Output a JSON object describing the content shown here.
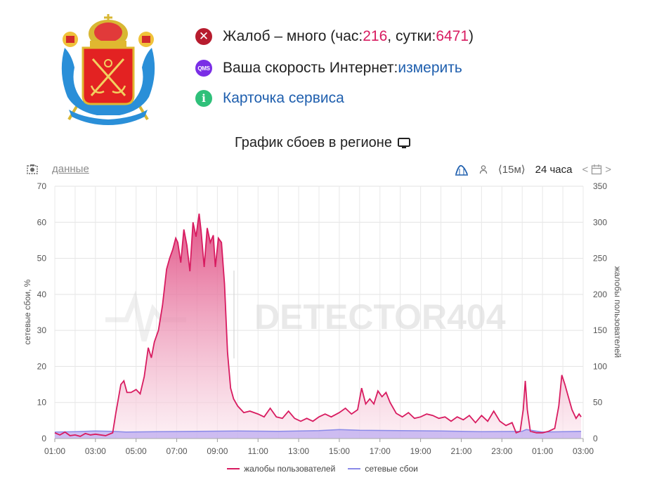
{
  "header": {
    "complaints": {
      "prefix": "Жалоб – много (час: ",
      "hour_value": "216",
      "middle": ", сутки: ",
      "day_value": "6471",
      "suffix": ")"
    },
    "speed": {
      "text": "Ваша скорость Интернет: ",
      "link": "измерить",
      "icon_text": "QMS"
    },
    "card": {
      "link": "Карточка сервиса",
      "icon_text": "i"
    }
  },
  "chart_title": "График сбоев в регионе",
  "toolbar": {
    "data_link": "данные",
    "interval": "⟨15м⟩",
    "period": "24 часа"
  },
  "watermark": "DETECTOR404",
  "colors": {
    "complaints": "#d81b60",
    "outages": "#8a8ae8",
    "fill_top": "#e0457e",
    "fill_bottom": "#fbe6ee"
  },
  "chart_data": {
    "type": "area",
    "ylabel_left": "сетевые сбои, %",
    "ylabel_right": "жалобы пользователей",
    "y_left_ticks": [
      "0",
      "10",
      "20",
      "30",
      "40",
      "50",
      "60",
      "70"
    ],
    "y_right_ticks": [
      "0",
      "50",
      "100",
      "150",
      "200",
      "250",
      "300",
      "350"
    ],
    "ylim_left": [
      0,
      70
    ],
    "ylim_right": [
      0,
      350
    ],
    "x_range_hours": [
      1,
      27
    ],
    "x_ticks": [
      "01:00",
      "03:00",
      "05:00",
      "07:00",
      "09:00",
      "11:00",
      "13:00",
      "15:00",
      "17:00",
      "19:00",
      "21:00",
      "23:00",
      "01:00",
      "03:00"
    ],
    "legend": [
      "жалобы пользователей",
      "сетевые сбои"
    ],
    "grid": true,
    "series": [
      {
        "name": "жалобы пользователей",
        "axis": "right",
        "points": [
          [
            1.0,
            8
          ],
          [
            1.25,
            5
          ],
          [
            1.5,
            9
          ],
          [
            1.75,
            4
          ],
          [
            2.0,
            5
          ],
          [
            2.25,
            3
          ],
          [
            2.5,
            7
          ],
          [
            2.75,
            5
          ],
          [
            3.0,
            6
          ],
          [
            3.5,
            4
          ],
          [
            3.85,
            8
          ],
          [
            4.0,
            35
          ],
          [
            4.25,
            75
          ],
          [
            4.4,
            80
          ],
          [
            4.55,
            64
          ],
          [
            4.75,
            64
          ],
          [
            5.0,
            68
          ],
          [
            5.2,
            62
          ],
          [
            5.4,
            86
          ],
          [
            5.6,
            126
          ],
          [
            5.75,
            112
          ],
          [
            5.9,
            134
          ],
          [
            6.1,
            150
          ],
          [
            6.3,
            185
          ],
          [
            6.5,
            235
          ],
          [
            6.65,
            250
          ],
          [
            6.8,
            262
          ],
          [
            6.95,
            278
          ],
          [
            7.05,
            272
          ],
          [
            7.2,
            244
          ],
          [
            7.35,
            290
          ],
          [
            7.5,
            268
          ],
          [
            7.65,
            232
          ],
          [
            7.8,
            300
          ],
          [
            7.95,
            280
          ],
          [
            8.1,
            312
          ],
          [
            8.2,
            288
          ],
          [
            8.35,
            238
          ],
          [
            8.5,
            292
          ],
          [
            8.65,
            272
          ],
          [
            8.8,
            282
          ],
          [
            8.9,
            238
          ],
          [
            9.05,
            278
          ],
          [
            9.2,
            272
          ],
          [
            9.35,
            215
          ],
          [
            9.5,
            120
          ],
          [
            9.65,
            70
          ],
          [
            9.8,
            55
          ],
          [
            10.0,
            45
          ],
          [
            10.3,
            36
          ],
          [
            10.6,
            38
          ],
          [
            11.0,
            34
          ],
          [
            11.3,
            30
          ],
          [
            11.6,
            42
          ],
          [
            11.9,
            30
          ],
          [
            12.2,
            28
          ],
          [
            12.5,
            38
          ],
          [
            12.8,
            28
          ],
          [
            13.1,
            24
          ],
          [
            13.4,
            28
          ],
          [
            13.7,
            24
          ],
          [
            14.0,
            30
          ],
          [
            14.3,
            34
          ],
          [
            14.6,
            30
          ],
          [
            15.0,
            36
          ],
          [
            15.3,
            42
          ],
          [
            15.6,
            34
          ],
          [
            15.9,
            40
          ],
          [
            16.1,
            70
          ],
          [
            16.3,
            48
          ],
          [
            16.5,
            55
          ],
          [
            16.7,
            48
          ],
          [
            16.9,
            66
          ],
          [
            17.1,
            58
          ],
          [
            17.3,
            64
          ],
          [
            17.5,
            50
          ],
          [
            17.8,
            35
          ],
          [
            18.1,
            30
          ],
          [
            18.4,
            36
          ],
          [
            18.7,
            28
          ],
          [
            19.0,
            30
          ],
          [
            19.3,
            34
          ],
          [
            19.6,
            32
          ],
          [
            19.9,
            28
          ],
          [
            20.2,
            30
          ],
          [
            20.5,
            24
          ],
          [
            20.8,
            30
          ],
          [
            21.1,
            26
          ],
          [
            21.4,
            32
          ],
          [
            21.7,
            22
          ],
          [
            22.0,
            32
          ],
          [
            22.3,
            24
          ],
          [
            22.6,
            38
          ],
          [
            22.9,
            24
          ],
          [
            23.2,
            18
          ],
          [
            23.5,
            22
          ],
          [
            23.7,
            8
          ],
          [
            23.9,
            10
          ],
          [
            24.05,
            40
          ],
          [
            24.15,
            80
          ],
          [
            24.25,
            40
          ],
          [
            24.4,
            10
          ],
          [
            24.7,
            8
          ],
          [
            25.0,
            8
          ],
          [
            25.3,
            10
          ],
          [
            25.6,
            14
          ],
          [
            25.8,
            45
          ],
          [
            25.95,
            88
          ],
          [
            26.1,
            75
          ],
          [
            26.25,
            60
          ],
          [
            26.45,
            40
          ],
          [
            26.65,
            28
          ],
          [
            26.8,
            34
          ],
          [
            26.9,
            30
          ]
        ]
      },
      {
        "name": "сетевые сбои",
        "axis": "left",
        "points": [
          [
            1.0,
            1.8
          ],
          [
            2.0,
            1.9
          ],
          [
            3.0,
            2.1
          ],
          [
            3.8,
            2.0
          ],
          [
            4.5,
            1.8
          ],
          [
            6.0,
            1.9
          ],
          [
            8.0,
            2.0
          ],
          [
            10.0,
            2.1
          ],
          [
            12.0,
            2.0
          ],
          [
            14.0,
            2.2
          ],
          [
            15.0,
            2.5
          ],
          [
            16.0,
            2.3
          ],
          [
            18.0,
            2.2
          ],
          [
            20.0,
            2.1
          ],
          [
            22.0,
            1.9
          ],
          [
            24.0,
            2.0
          ],
          [
            24.2,
            2.5
          ],
          [
            25.0,
            1.8
          ],
          [
            26.0,
            1.9
          ],
          [
            26.9,
            2.0
          ]
        ]
      }
    ]
  }
}
